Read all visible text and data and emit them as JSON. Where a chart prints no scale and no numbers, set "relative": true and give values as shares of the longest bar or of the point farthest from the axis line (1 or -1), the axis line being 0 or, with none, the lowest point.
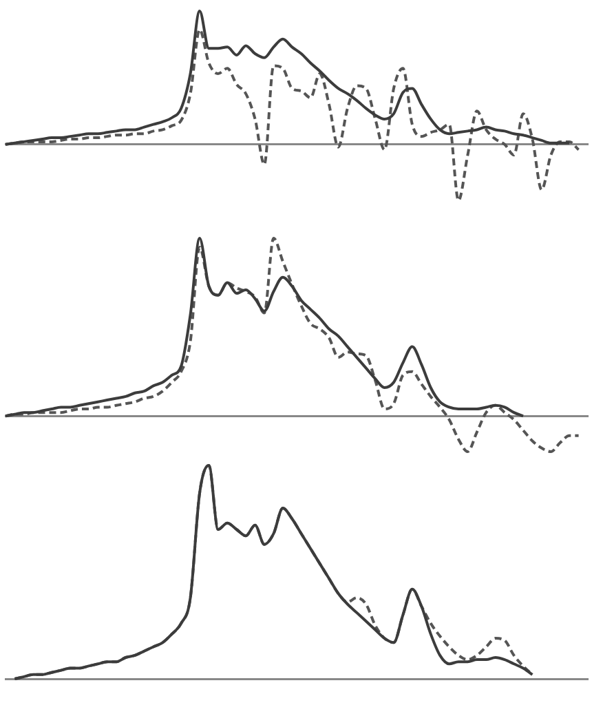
{
  "chart_data": [
    {
      "type": "line",
      "relative": true,
      "line_style": "solid",
      "grid": false,
      "legend": false,
      "categories": [
        null,
        null,
        null,
        null,
        null,
        null,
        null,
        null,
        null,
        null,
        null,
        null,
        null,
        null,
        null,
        null,
        null,
        null,
        null,
        null,
        null,
        null,
        null,
        null,
        null,
        null,
        null,
        null,
        null,
        null,
        null,
        null,
        null,
        null,
        null,
        null,
        null,
        null,
        null,
        null,
        null,
        null,
        null,
        null,
        null,
        null,
        null,
        null,
        null,
        null,
        null,
        null,
        null,
        null,
        null,
        null,
        null,
        null,
        null,
        null,
        null,
        null,
        null,
        null
      ],
      "series": [
        {
          "color": "#3c3c3c",
          "values": [
            0,
            0.01,
            0.02,
            0.03,
            0.04,
            0.05,
            0.05,
            0.06,
            0.07,
            0.08,
            0.08,
            0.09,
            0.1,
            0.11,
            0.11,
            0.13,
            0.15,
            0.17,
            0.2,
            0.27,
            0.53,
            1,
            0.72,
            0.72,
            0.73,
            0.67,
            0.74,
            0.68,
            0.65,
            0.73,
            0.79,
            0.73,
            0.68,
            0.61,
            0.55,
            0.48,
            0.42,
            0.38,
            0.33,
            0.27,
            0.22,
            0.19,
            0.23,
            0.39,
            0.42,
            0.3,
            0.19,
            0.11,
            0.08,
            0.09,
            0.1,
            0.11,
            0.13,
            0.11,
            0.1,
            0.08,
            0.07,
            0.05,
            0.03,
            0.01,
            0.01,
            0.01,
            null,
            null
          ]
        },
        {
          "color": "#555555",
          "line_style": "dashed",
          "values": [
            0,
            0.01,
            0.02,
            0.02,
            0.02,
            0.02,
            0.03,
            0.04,
            0.04,
            0.05,
            0.05,
            0.06,
            0.07,
            0.07,
            0.08,
            0.08,
            0.1,
            0.11,
            0.14,
            0.18,
            0.38,
            0.86,
            0.61,
            0.53,
            0.57,
            0.45,
            0.38,
            0.19,
            -0.15,
            0.59,
            0.57,
            0.42,
            0.4,
            0.35,
            0.53,
            0.3,
            -0.02,
            0.27,
            0.44,
            0.42,
            0.19,
            -0.04,
            0.42,
            0.57,
            0.15,
            0.06,
            0.09,
            0.11,
            0.15,
            -0.42,
            -0.08,
            0.25,
            0.11,
            0.04,
            0,
            -0.08,
            0.23,
            0.04,
            -0.34,
            -0.08,
            0.02,
            0.02,
            -0.04,
            null
          ]
        }
      ]
    },
    {
      "type": "line",
      "relative": true,
      "line_style": "solid",
      "grid": false,
      "legend": false,
      "categories": [
        null,
        null,
        null,
        null,
        null,
        null,
        null,
        null,
        null,
        null,
        null,
        null,
        null,
        null,
        null,
        null,
        null,
        null,
        null,
        null,
        null,
        null,
        null,
        null,
        null,
        null,
        null,
        null,
        null,
        null,
        null,
        null,
        null,
        null,
        null,
        null,
        null,
        null,
        null,
        null,
        null,
        null,
        null,
        null,
        null,
        null,
        null,
        null,
        null,
        null,
        null,
        null,
        null,
        null,
        null,
        null,
        null,
        null,
        null,
        null,
        null,
        null,
        null,
        null
      ],
      "series": [
        {
          "color": "#3c3c3c",
          "values": [
            0,
            0.01,
            0.02,
            0.02,
            0.03,
            0.04,
            0.05,
            0.05,
            0.06,
            0.07,
            0.08,
            0.09,
            0.1,
            0.11,
            0.13,
            0.14,
            0.17,
            0.19,
            0.23,
            0.28,
            0.57,
            1,
            0.73,
            0.68,
            0.75,
            0.69,
            0.71,
            0.66,
            0.59,
            0.7,
            0.78,
            0.73,
            0.65,
            0.6,
            0.55,
            0.49,
            0.45,
            0.39,
            0.33,
            0.27,
            0.21,
            0.16,
            0.19,
            0.3,
            0.39,
            0.29,
            0.16,
            0.08,
            0.05,
            0.04,
            0.04,
            0.04,
            0.05,
            0.06,
            0.05,
            0.02,
            0,
            null,
            null,
            null,
            null,
            null,
            null,
            null
          ]
        },
        {
          "color": "#555555",
          "line_style": "dashed",
          "values": [
            0,
            0.01,
            0.01,
            0.02,
            0.02,
            0.02,
            0.02,
            0.03,
            0.04,
            0.04,
            0.05,
            0.05,
            0.06,
            0.07,
            0.08,
            0.1,
            0.11,
            0.14,
            0.19,
            0.25,
            0.42,
            0.95,
            0.73,
            0.68,
            0.75,
            0.72,
            0.7,
            0.67,
            0.58,
            1,
            0.87,
            0.74,
            0.62,
            0.52,
            0.49,
            0.44,
            0.33,
            0.36,
            0.35,
            0.34,
            0.2,
            0.04,
            0.07,
            0.23,
            0.25,
            0.18,
            0.11,
            0.05,
            -0.02,
            -0.13,
            -0.2,
            -0.09,
            0.02,
            0.06,
            0.02,
            -0.02,
            -0.08,
            -0.14,
            -0.18,
            -0.2,
            -0.15,
            -0.11,
            -0.11,
            null
          ]
        }
      ]
    },
    {
      "type": "line",
      "relative": true,
      "line_style": "solid",
      "grid": false,
      "legend": false,
      "categories": [
        null,
        null,
        null,
        null,
        null,
        null,
        null,
        null,
        null,
        null,
        null,
        null,
        null,
        null,
        null,
        null,
        null,
        null,
        null,
        null,
        null,
        null,
        null,
        null,
        null,
        null,
        null,
        null,
        null,
        null,
        null,
        null,
        null,
        null,
        null,
        null,
        null,
        null,
        null,
        null,
        null,
        null,
        null,
        null,
        null,
        null,
        null,
        null,
        null,
        null,
        null,
        null,
        null,
        null,
        null,
        null,
        null,
        null,
        null,
        null,
        null,
        null,
        null,
        null
      ],
      "series": [
        {
          "color": "#3c3c3c",
          "values": [
            null,
            0,
            0.01,
            0.02,
            0.02,
            0.03,
            0.04,
            0.05,
            0.05,
            0.06,
            0.07,
            0.08,
            0.08,
            0.1,
            0.11,
            0.13,
            0.15,
            0.17,
            0.21,
            0.26,
            0.38,
            0.87,
            1,
            0.7,
            0.73,
            0.7,
            0.67,
            0.72,
            0.63,
            0.68,
            0.8,
            0.75,
            0.68,
            0.61,
            0.54,
            0.47,
            0.4,
            0.35,
            0.31,
            0.27,
            0.23,
            0.19,
            0.17,
            0.3,
            0.42,
            0.34,
            0.21,
            0.11,
            0.07,
            0.08,
            0.08,
            0.09,
            0.09,
            0.1,
            0.09,
            0.07,
            0.05,
            0.02,
            null,
            null,
            null,
            null,
            null,
            null
          ]
        },
        {
          "color": "#555555",
          "line_style": "dashed",
          "values": [
            null,
            0,
            0.01,
            0.02,
            0.02,
            0.03,
            0.04,
            0.05,
            0.05,
            0.06,
            0.07,
            0.08,
            0.08,
            0.1,
            0.11,
            0.13,
            0.15,
            0.17,
            0.21,
            0.26,
            0.38,
            0.87,
            1,
            0.7,
            0.73,
            0.7,
            0.67,
            0.72,
            0.63,
            0.68,
            0.8,
            0.75,
            0.68,
            0.61,
            0.54,
            0.47,
            0.4,
            0.36,
            0.38,
            0.35,
            0.25,
            0.19,
            0.17,
            0.3,
            0.42,
            0.34,
            0.26,
            0.2,
            0.15,
            0.11,
            0.09,
            0.11,
            0.15,
            0.19,
            0.18,
            0.11,
            0.06,
            0.02,
            null,
            null,
            null,
            null,
            null,
            null
          ]
        }
      ]
    }
  ]
}
